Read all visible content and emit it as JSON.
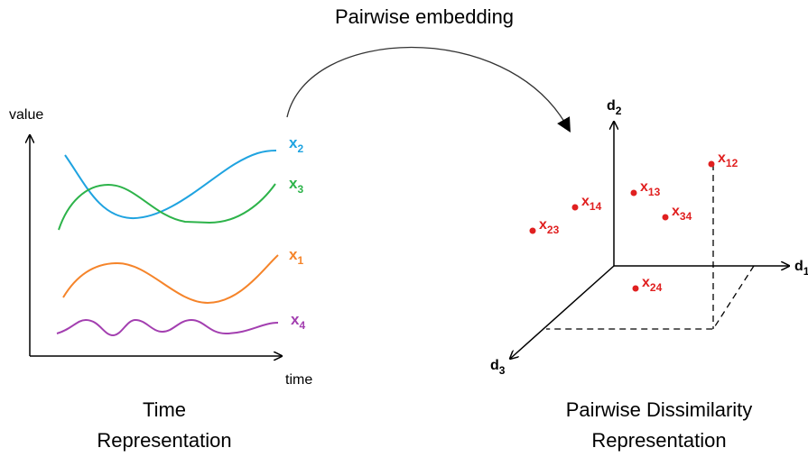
{
  "title": "Pairwise embedding",
  "left_panel": {
    "y_axis_label": "value",
    "x_axis_label": "time",
    "caption": [
      "Time",
      "Representation"
    ],
    "series": [
      {
        "base": "x",
        "sub": "2",
        "color": "#1fa3e0"
      },
      {
        "base": "x",
        "sub": "3",
        "color": "#2db34a"
      },
      {
        "base": "x",
        "sub": "1",
        "color": "#f5842a"
      },
      {
        "base": "x",
        "sub": "4",
        "color": "#a33fb0"
      }
    ]
  },
  "right_panel": {
    "axes": [
      {
        "base": "d",
        "sub": "1"
      },
      {
        "base": "d",
        "sub": "2"
      },
      {
        "base": "d",
        "sub": "3"
      }
    ],
    "caption": [
      "Pairwise Dissimilarity",
      "Representation"
    ],
    "points": [
      {
        "base": "x",
        "sub": "12"
      },
      {
        "base": "x",
        "sub": "13"
      },
      {
        "base": "x",
        "sub": "14"
      },
      {
        "base": "x",
        "sub": "34"
      },
      {
        "base": "x",
        "sub": "23"
      },
      {
        "base": "x",
        "sub": "24"
      }
    ],
    "point_color": "#e02020"
  }
}
